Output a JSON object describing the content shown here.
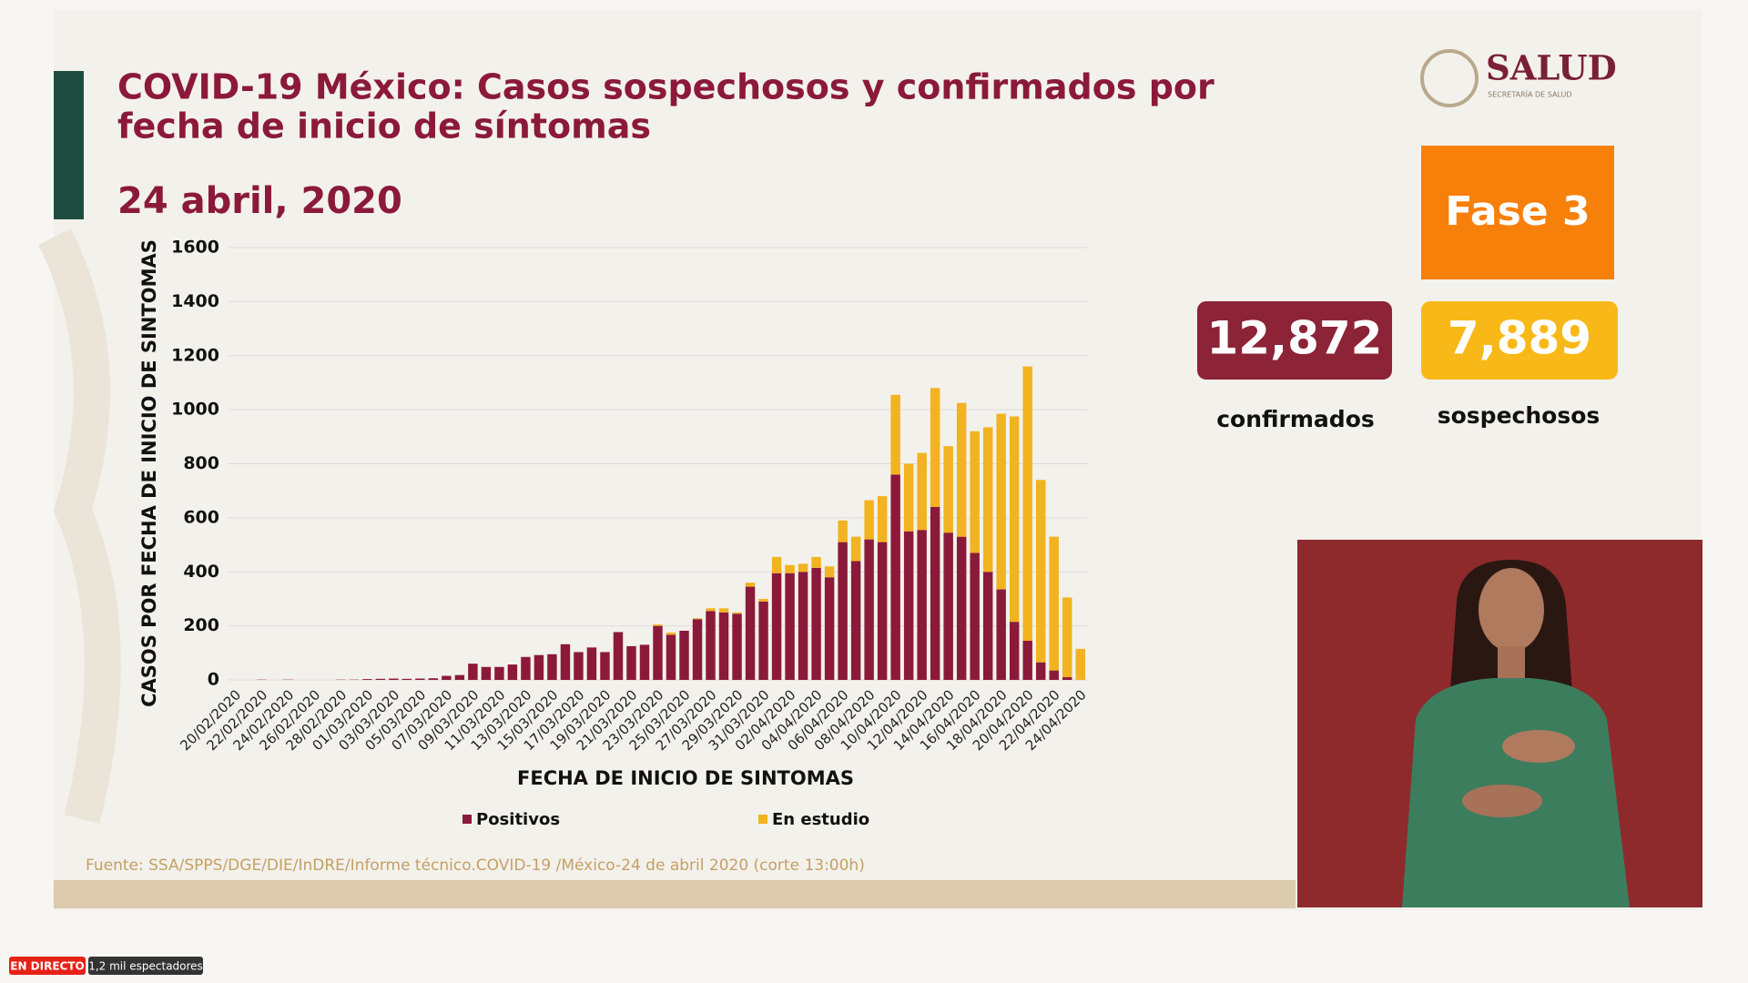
{
  "chart_data": {
    "type": "bar",
    "stacked": true,
    "title_lines": [
      "COVID-19 México: Casos sospechosos y confirmados por",
      "fecha de inicio de síntomas"
    ],
    "subtitle": "24 abril, 2020",
    "ylabel": "CASOS POR FECHA DE INICIO DE SINTOMAS",
    "xlabel": "FECHA DE INICIO DE SINTOMAS",
    "categories": [
      "20/02/2020",
      null,
      "22/02/2020",
      null,
      "24/02/2020",
      null,
      "26/02/2020",
      null,
      "28/02/2020",
      null,
      "01/03/2020",
      null,
      "03/03/2020",
      null,
      "05/03/2020",
      null,
      "07/03/2020",
      null,
      "09/03/2020",
      null,
      "11/03/2020",
      null,
      "13/03/2020",
      null,
      "15/03/2020",
      null,
      "17/03/2020",
      null,
      "19/03/2020",
      null,
      "21/03/2020",
      null,
      "23/03/2020",
      null,
      "25/03/2020",
      null,
      "27/03/2020",
      null,
      "29/03/2020",
      null,
      "31/03/2020",
      null,
      "02/04/2020",
      null,
      "04/04/2020",
      null,
      "06/04/2020",
      null,
      "08/04/2020",
      null,
      "10/04/2020",
      null,
      "12/04/2020",
      null,
      "14/04/2020",
      null,
      "16/04/2020",
      null,
      "18/04/2020",
      null,
      "20/04/2020",
      null,
      "22/04/2020",
      null,
      "24/04/2020"
    ],
    "series": [
      {
        "name": "Positivos",
        "color": "#8b1a3a",
        "values": [
          0,
          0,
          1,
          0,
          1,
          0,
          0,
          0,
          1,
          1,
          3,
          4,
          5,
          4,
          5,
          6,
          15,
          18,
          60,
          48,
          48,
          57,
          85,
          92,
          95,
          132,
          103,
          120,
          103,
          177,
          125,
          130,
          200,
          167,
          182,
          225,
          255,
          250,
          245,
          345,
          290,
          395,
          395,
          400,
          415,
          380,
          510,
          440,
          520,
          510,
          760,
          550,
          555,
          640,
          545,
          530,
          470,
          400,
          335,
          215,
          145,
          65,
          35,
          10,
          0
        ]
      },
      {
        "name": "En estudio",
        "color": "#f2b320",
        "values": [
          0,
          0,
          0,
          0,
          0,
          0,
          0,
          0,
          0,
          0,
          0,
          0,
          0,
          0,
          0,
          0,
          0,
          0,
          0,
          0,
          0,
          0,
          0,
          0,
          0,
          0,
          0,
          0,
          0,
          0,
          0,
          0,
          5,
          8,
          0,
          3,
          10,
          15,
          5,
          15,
          10,
          60,
          30,
          30,
          40,
          40,
          80,
          90,
          145,
          170,
          295,
          250,
          285,
          440,
          320,
          495,
          450,
          535,
          650,
          760,
          1015,
          675,
          495,
          295,
          115
        ]
      }
    ],
    "ylim": [
      0,
      1600
    ],
    "yticks": [
      0,
      200,
      400,
      600,
      800,
      1000,
      1200,
      1400,
      1600
    ],
    "grid": true,
    "source": "Fuente: SSA/SPPS/DGE/DIE/InDRE/Informe técnico.COVID-19 /México-24 de abril 2020 (corte 13:00h)"
  },
  "logo": {
    "name": "SALUD",
    "sub": "SECRETARÍA DE SALUD"
  },
  "phase": "Fase 3",
  "stats": [
    {
      "value": "12,872",
      "label": "confirmados"
    },
    {
      "value": "7,889",
      "label": "sospechosos"
    }
  ],
  "stream": {
    "live": "EN DIRECTO",
    "viewers": "1,2 mil espectadores"
  }
}
